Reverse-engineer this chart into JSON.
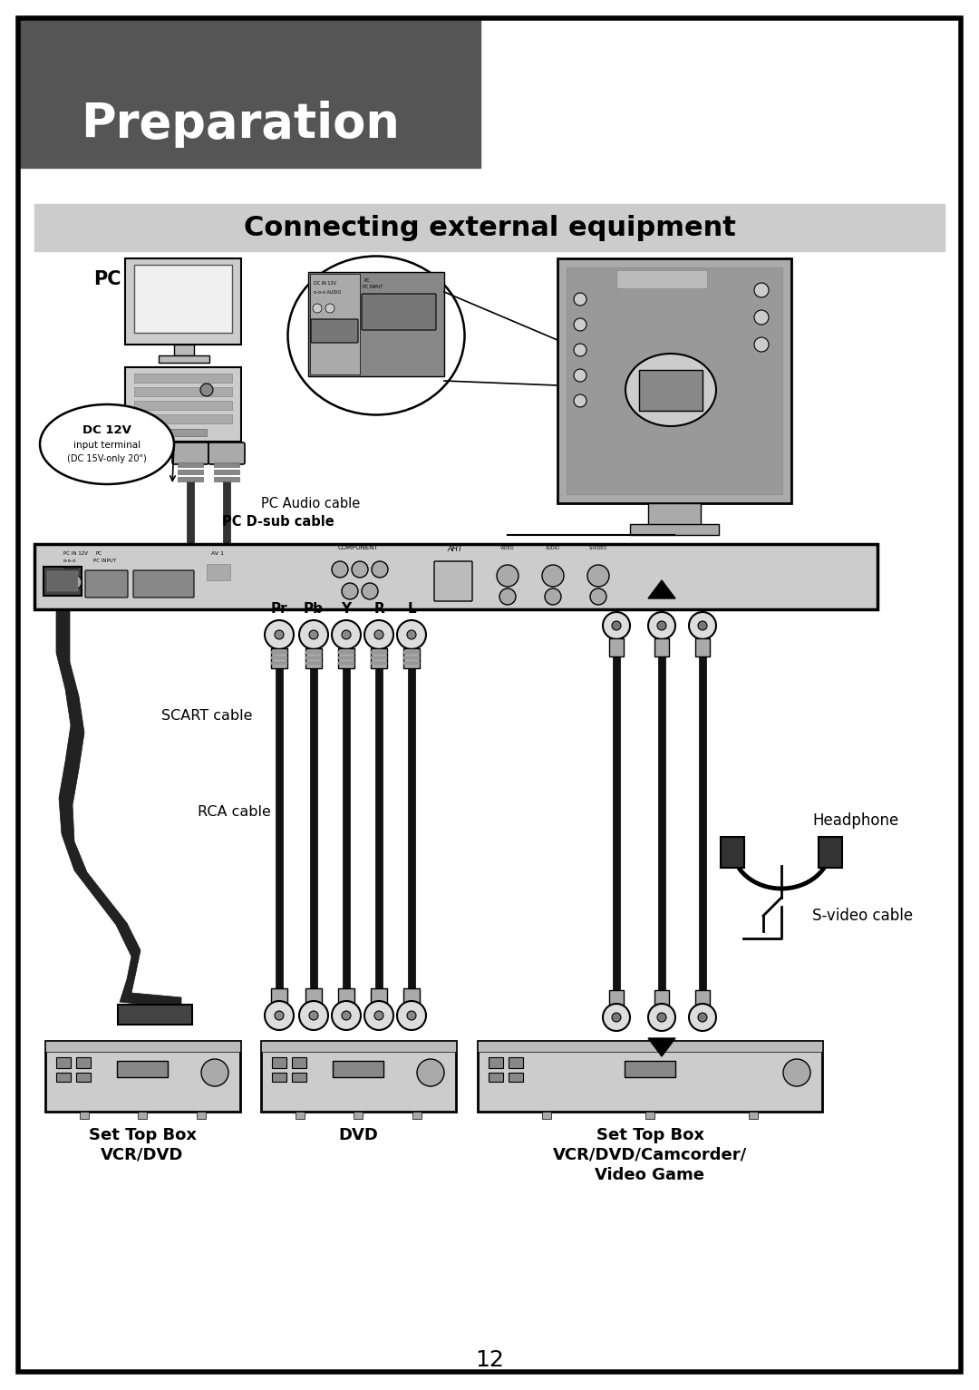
{
  "page_bg": "#ffffff",
  "outer_border_color": "#000000",
  "outer_border_lw": 4,
  "header_bg": "#555555",
  "header_text": "Preparation",
  "header_text_color": "#ffffff",
  "header_font_size": 38,
  "section_bar_bg": "#cccccc",
  "section_title": "Connecting external equipment",
  "section_title_fontsize": 22,
  "page_number": "12",
  "page_number_fontsize": 18,
  "label_pc": "PC",
  "label_pc_audio": "PC Audio cable",
  "label_pc_dsub": "PC D-sub cable",
  "label_dc12v": "DC 12V",
  "label_dc12v_sub1": "input terminal",
  "label_dc12v_sub2": "(DC 15V-only 20\")",
  "label_scart": "SCART cable",
  "label_rca": "RCA cable",
  "label_headphone": "Headphone",
  "label_svideo": "S-video cable",
  "label_pr": "Pr",
  "label_pb": "Pb",
  "label_y": "Y",
  "label_r": "R",
  "label_l": "L",
  "label_stb1_line1": "Set Top Box",
  "label_stb1_line2": "VCR/DVD",
  "label_dvd": "DVD",
  "label_stb2_line1": "Set Top Box",
  "label_stb2_line2": "VCR/DVD/Camcorder/",
  "label_stb2_line3": "Video Game",
  "body_text_color": "#000000"
}
